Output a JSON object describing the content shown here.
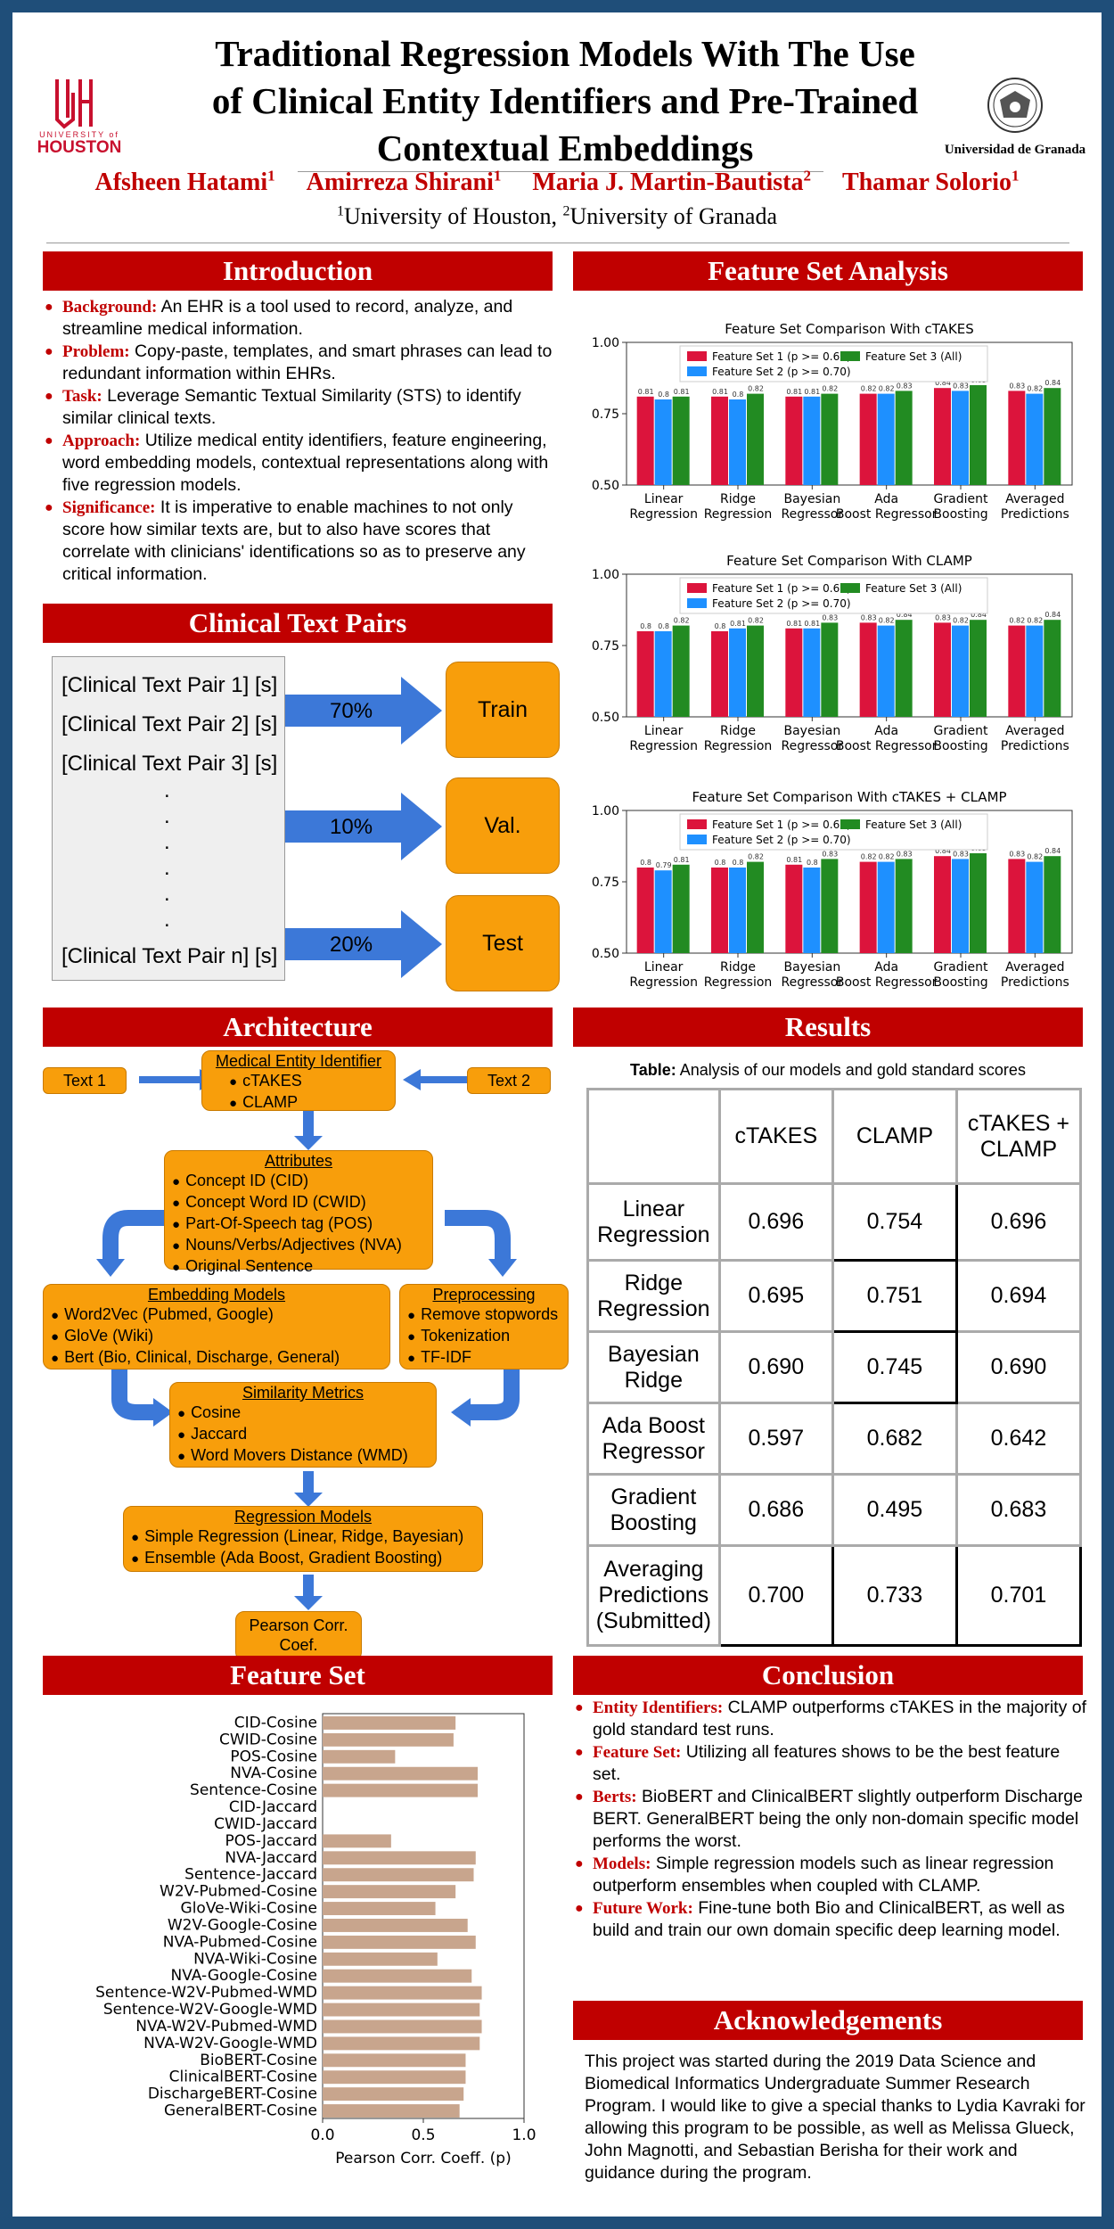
{
  "header": {
    "title_lines": [
      "Traditional Regression Models With The Use",
      "of Clinical Entity Identifiers and Pre-Trained",
      "Contextual Embeddings"
    ],
    "authors": [
      {
        "name": "Afsheen Hatami",
        "sup": "1"
      },
      {
        "name": "Amirreza Shirani",
        "sup": "1"
      },
      {
        "name": "Maria J. Martin-Bautista",
        "sup": "2"
      },
      {
        "name": "Thamar Solorio",
        "sup": "1"
      }
    ],
    "affiliation": {
      "sup1": "1",
      "org1": "University of Houston, ",
      "sup2": "2",
      "org2": "University of Granada"
    },
    "logo_left_text": "HOUSTON",
    "logo_left_small": "UNIVERSITY of",
    "logo_right_text": "Universidad de Granada",
    "colors": {
      "accent": "#c00000",
      "frame": "#1f4e79",
      "orange": "#f89e0b",
      "arrow": "#3c78d8"
    }
  },
  "introduction": {
    "heading": "Introduction",
    "items": [
      {
        "key": "Background:",
        "text": " An EHR is a tool used to record, analyze, and streamline medical information."
      },
      {
        "key": "Problem:",
        "text": " Copy-paste, templates, and smart phrases can lead to redundant information within EHRs."
      },
      {
        "key": "Task:",
        "text": " Leverage Semantic Textual Similarity (STS) to identify similar clinical texts."
      },
      {
        "key": "Approach:",
        "text": " Utilize medical entity identifiers, feature engineering, word embedding models, contextual representations along with five regression models."
      },
      {
        "key": "Significance:",
        "text": " It is imperative to enable machines to not only score how similar texts are, but to also have scores that correlate with clinicians' identifications so as to preserve any critical information."
      }
    ]
  },
  "clinical_pairs": {
    "heading": "Clinical Text Pairs",
    "pairs": [
      "[Clinical Text Pair 1] [s]",
      "[Clinical Text Pair 2] [s]",
      "[Clinical Text Pair 3] [s]",
      "[Clinical Text Pair n] [s]"
    ],
    "dots": ".",
    "splits": [
      {
        "pct": "70%",
        "label": "Train"
      },
      {
        "pct": "10%",
        "label": "Val."
      },
      {
        "pct": "20%",
        "label": "Test"
      }
    ]
  },
  "architecture": {
    "heading": "Architecture",
    "text1": "Text 1",
    "text2": "Text 2",
    "mei": {
      "title": "Medical Entity Identifier",
      "items": [
        "cTAKES",
        "CLAMP"
      ]
    },
    "attributes": {
      "title": "Attributes",
      "items": [
        "Concept ID (CID)",
        "Concept Word ID (CWID)",
        "Part-Of-Speech tag (POS)",
        "Nouns/Verbs/Adjectives (NVA)",
        "Original Sentence"
      ]
    },
    "embedding": {
      "title": "Embedding Models",
      "items": [
        "Word2Vec (Pubmed, Google)",
        "GloVe (Wiki)",
        "Bert (Bio, Clinical, Discharge, General)"
      ]
    },
    "preprocessing": {
      "title": "Preprocessing",
      "items": [
        "Remove stopwords",
        "Tokenization",
        "TF-IDF"
      ]
    },
    "similarity": {
      "title": "Similarity Metrics",
      "items": [
        "Cosine",
        "Jaccard",
        "Word Movers Distance (WMD)"
      ]
    },
    "regression": {
      "title": "Regression Models",
      "items": [
        "Simple Regression (Linear, Ridge, Bayesian)",
        "Ensemble (Ada Boost, Gradient Boosting)"
      ]
    },
    "pearson": "Pearson Corr. Coef."
  },
  "feature_set": {
    "heading": "Feature Set",
    "xlabel": "Pearson Corr. Coeff. (p)"
  },
  "feature_analysis": {
    "heading": "Feature Set Analysis"
  },
  "results": {
    "heading": "Results",
    "caption_bold": "Table:",
    "caption_text": " Analysis of our models and gold standard scores",
    "columns": [
      "cTAKES",
      "CLAMP",
      "cTAKES + CLAMP"
    ],
    "rows": [
      {
        "label": "Linear Regression",
        "values": [
          "0.696",
          "0.754",
          "0.696"
        ]
      },
      {
        "label": "Ridge Regression",
        "values": [
          "0.695",
          "0.751",
          "0.694"
        ]
      },
      {
        "label": "Bayesian Ridge",
        "values": [
          "0.690",
          "0.745",
          "0.690"
        ]
      },
      {
        "label": "Ada Boost Regressor",
        "values": [
          "0.597",
          "0.682",
          "0.642"
        ]
      },
      {
        "label": "Gradient Boosting",
        "values": [
          "0.686",
          "0.495",
          "0.683"
        ]
      },
      {
        "label": "Averaging Predictions (Submitted)",
        "values": [
          "0.700",
          "0.733",
          "0.701"
        ]
      }
    ]
  },
  "conclusion": {
    "heading": "Conclusion",
    "items": [
      {
        "key": "Entity Identifiers:",
        "text": " CLAMP outperforms cTAKES in the majority of gold standard test runs."
      },
      {
        "key": "Feature Set:",
        "text": " Utilizing all features shows to be the best feature set."
      },
      {
        "key": "Berts:",
        "text": " BioBERT and ClinicalBERT slightly outperform Discharge BERT. GeneralBERT being the only non-domain specific model performs the worst."
      },
      {
        "key": "Models:",
        "text": " Simple regression models such as linear regression outperform ensembles when coupled with CLAMP."
      },
      {
        "key": "Future Work:",
        "text": " Fine-tune both Bio and ClinicalBERT, as well as build and train our own domain specific deep learning model."
      }
    ]
  },
  "acknowledgements": {
    "heading": "Acknowledgements",
    "text": "This project was started during the 2019 Data Science and Biomedical Informatics Undergraduate Summer Research Program. I would like to give a special thanks to Lydia Kavraki for allowing this program to be possible, as well as Melissa Glueck, John Magnotti, and Sebastian Berisha for their work and guidance during the program."
  },
  "chart_data": [
    {
      "type": "bar",
      "title": "Feature Set Comparison With cTAKES",
      "categories": [
        "Linear Regression",
        "Ridge Regression",
        "Bayesian Regressor",
        "Ada Boost Regressor",
        "Gradient Boosting",
        "Averaged Predictions"
      ],
      "ylim": [
        0.5,
        1.0
      ],
      "yticks": [
        "0.50",
        "0.75",
        "1.00"
      ],
      "legend_position": "top",
      "series": [
        {
          "name": "Feature Set 1 (p >= 0.60)",
          "color": "#dc143c",
          "values": [
            0.81,
            0.81,
            0.81,
            0.82,
            0.84,
            0.83
          ],
          "labels": [
            "0.81",
            "0.81",
            "0.81",
            "0.82",
            "0.84",
            "0.83"
          ]
        },
        {
          "name": "Feature Set 2 (p >= 0.70)",
          "color": "#1e90ff",
          "values": [
            0.8,
            0.8,
            0.81,
            0.82,
            0.83,
            0.82
          ],
          "labels": [
            "0.8",
            "0.8",
            "0.81",
            "0.82",
            "0.83",
            "0.82"
          ]
        },
        {
          "name": "Feature Set 3 (All)",
          "color": "#228b22",
          "values": [
            0.81,
            0.82,
            0.82,
            0.83,
            0.85,
            0.84
          ],
          "labels": [
            "0.81",
            "0.82",
            "0.82",
            "0.83",
            "0.85",
            "0.84"
          ]
        }
      ]
    },
    {
      "type": "bar",
      "title": "Feature Set Comparison With CLAMP",
      "categories": [
        "Linear Regression",
        "Ridge Regression",
        "Bayesian Regressor",
        "Ada Boost Regressor",
        "Gradient Boosting",
        "Averaged Predictions"
      ],
      "ylim": [
        0.5,
        1.0
      ],
      "yticks": [
        "0.50",
        "0.75",
        "1.00"
      ],
      "legend_position": "top",
      "series": [
        {
          "name": "Feature Set 1 (p >= 0.60)",
          "color": "#dc143c",
          "values": [
            0.8,
            0.8,
            0.81,
            0.83,
            0.83,
            0.82
          ],
          "labels": [
            "0.8",
            "0.8",
            "0.81",
            "0.83",
            "0.83",
            "0.82"
          ]
        },
        {
          "name": "Feature Set 2 (p >= 0.70)",
          "color": "#1e90ff",
          "values": [
            0.8,
            0.81,
            0.81,
            0.82,
            0.82,
            0.82
          ],
          "labels": [
            "0.8",
            "0.81",
            "0.81",
            "0.82",
            "0.82",
            "0.82"
          ]
        },
        {
          "name": "Feature Set 3 (All)",
          "color": "#228b22",
          "values": [
            0.82,
            0.82,
            0.83,
            0.84,
            0.84,
            0.84
          ],
          "labels": [
            "0.82",
            "0.82",
            "0.83",
            "0.84",
            "0.84",
            "0.84"
          ]
        }
      ]
    },
    {
      "type": "bar",
      "title": "Feature Set Comparison With cTAKES + CLAMP",
      "categories": [
        "Linear Regression",
        "Ridge Regression",
        "Bayesian Regressor",
        "Ada Boost Regressor",
        "Gradient Boosting",
        "Averaged Predictions"
      ],
      "ylim": [
        0.5,
        1.0
      ],
      "yticks": [
        "0.50",
        "0.75",
        "1.00"
      ],
      "legend_position": "top",
      "series": [
        {
          "name": "Feature Set 1 (p >= 0.60)",
          "color": "#dc143c",
          "values": [
            0.8,
            0.8,
            0.81,
            0.82,
            0.84,
            0.83
          ],
          "labels": [
            "0.8",
            "0.8",
            "0.81",
            "0.82",
            "0.84",
            "0.83"
          ]
        },
        {
          "name": "Feature Set 2 (p >= 0.70)",
          "color": "#1e90ff",
          "values": [
            0.79,
            0.8,
            0.8,
            0.82,
            0.83,
            0.82
          ],
          "labels": [
            "0.79",
            "0.8",
            "0.8",
            "0.82",
            "0.83",
            "0.82"
          ]
        },
        {
          "name": "Feature Set 3 (All)",
          "color": "#228b22",
          "values": [
            0.81,
            0.82,
            0.83,
            0.83,
            0.85,
            0.84
          ],
          "labels": [
            "0.81",
            "0.82",
            "0.83",
            "0.83",
            "0.85",
            "0.84"
          ]
        }
      ]
    },
    {
      "type": "bar",
      "orientation": "horizontal",
      "xlabel": "Pearson Corr. Coeff. (p)",
      "xlim": [
        0.0,
        1.0
      ],
      "xticks": [
        "0.0",
        "0.5",
        "1.0"
      ],
      "color": "#c8a58d",
      "categories": [
        "CID-Cosine",
        "CWID-Cosine",
        "POS-Cosine",
        "NVA-Cosine",
        "Sentence-Cosine",
        "CID-Jaccard",
        "CWID-Jaccard",
        "POS-Jaccard",
        "NVA-Jaccard",
        "Sentence-Jaccard",
        "W2V-Pubmed-Cosine",
        "GloVe-Wiki-Cosine",
        "W2V-Google-Cosine",
        "NVA-Pubmed-Cosine",
        "NVA-Wiki-Cosine",
        "NVA-Google-Cosine",
        "Sentence-W2V-Pubmed-WMD",
        "Sentence-W2V-Google-WMD",
        "NVA-W2V-Pubmed-WMD",
        "NVA-W2V-Google-WMD",
        "BioBERT-Cosine",
        "ClinicalBERT-Cosine",
        "DischargeBERT-Cosine",
        "GeneralBERT-Cosine"
      ],
      "values": [
        0.66,
        0.65,
        0.36,
        0.77,
        0.77,
        0.0,
        0.0,
        0.34,
        0.76,
        0.75,
        0.66,
        0.56,
        0.72,
        0.76,
        0.57,
        0.74,
        0.79,
        0.78,
        0.79,
        0.78,
        0.71,
        0.71,
        0.7,
        0.68
      ]
    }
  ]
}
